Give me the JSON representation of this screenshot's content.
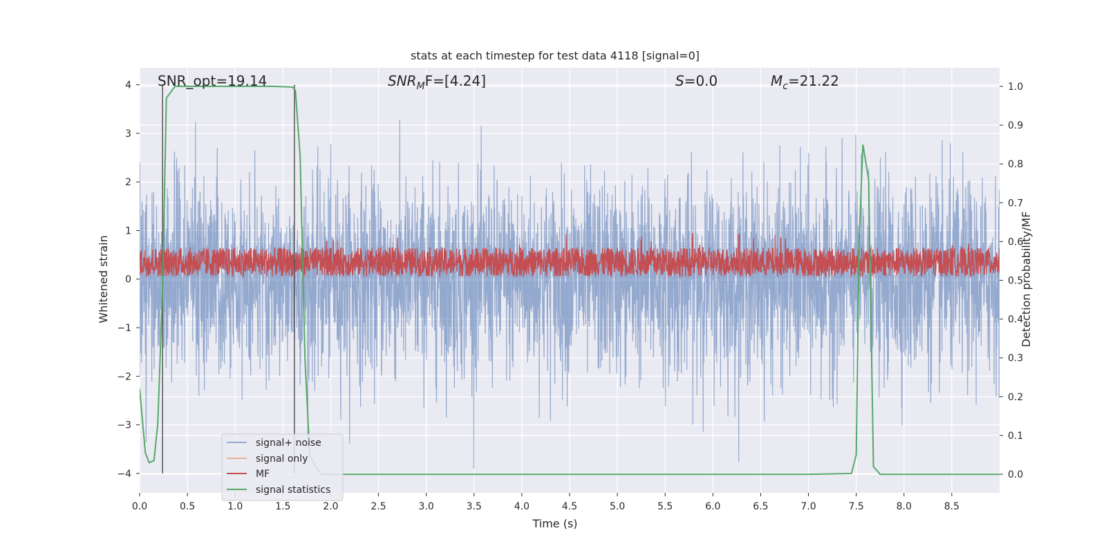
{
  "chart_data": {
    "type": "line",
    "title": "stats at each timestep for test data 4118 [signal=0]",
    "xlabel": "Time (s)",
    "ylabel": "Whitened strain",
    "y2label": "Detection probability/MF",
    "xlim": [
      0.0,
      9.0
    ],
    "ylim": [
      -4.4,
      4.35
    ],
    "y2lim": [
      -0.048,
      1.048
    ],
    "xticks": [
      "0.0",
      "0.5",
      "1.0",
      "1.5",
      "2.0",
      "2.5",
      "3.0",
      "3.5",
      "4.0",
      "4.5",
      "5.0",
      "5.5",
      "6.0",
      "6.5",
      "7.0",
      "7.5",
      "8.0",
      "8.5"
    ],
    "yticks": [
      "4",
      "3",
      "2",
      "1",
      "0",
      "−1",
      "−2",
      "−3",
      "−4"
    ],
    "y2ticks": [
      "1.0",
      "0.9",
      "0.8",
      "0.7",
      "0.6",
      "0.5",
      "0.4",
      "0.3",
      "0.2",
      "0.1",
      "0.0"
    ],
    "grid": true,
    "legend_position": "lower-left",
    "annotations": {
      "snr_opt": "SNR_opt=19.14",
      "snr_mf_base": "SNR",
      "snr_mf_sub": "M",
      "snr_mf_tail": "F=[4.24]",
      "s_var": "S",
      "s_val": "=0.0",
      "mc_var": "M",
      "mc_sub": "c",
      "mc_val": "=21.22"
    },
    "vertical_lines_x": [
      0.24,
      1.62
    ],
    "series": [
      {
        "name": "signal+ noise",
        "color": "#4c72b0",
        "description_values": "noise envelope approx ±1.6 with peaks to ±3.5",
        "amplitude_y": 1.0,
        "peak_y": 3.9
      },
      {
        "name": "signal only",
        "color": "#dd8452",
        "values": []
      },
      {
        "name": "MF",
        "color": "#c44e52",
        "center_y": 0.35,
        "amplitude_y": 0.3
      },
      {
        "name": "signal statistics",
        "color": "#55a868",
        "x": [
          0.0,
          0.06,
          0.1,
          0.15,
          0.19,
          0.24,
          0.28,
          0.31,
          0.37,
          0.42,
          0.6,
          1.0,
          1.4,
          1.6,
          1.63,
          1.68,
          1.73,
          1.78,
          1.84,
          1.9,
          2.2,
          4.0,
          6.0,
          7.0,
          7.45,
          7.5,
          7.53,
          7.57,
          7.63,
          7.68,
          7.75,
          8.0,
          9.0
        ],
        "y": [
          0.22,
          0.055,
          0.03,
          0.035,
          0.13,
          0.48,
          0.97,
          0.98,
          1.0,
          1.0,
          1.0,
          1.0,
          1.0,
          0.998,
          0.99,
          0.82,
          0.3,
          0.05,
          0.02,
          0.0,
          0.0,
          0.0,
          0.0,
          0.0,
          0.002,
          0.05,
          0.6,
          0.85,
          0.76,
          0.02,
          0.0,
          0.0,
          0.0
        ]
      }
    ]
  }
}
